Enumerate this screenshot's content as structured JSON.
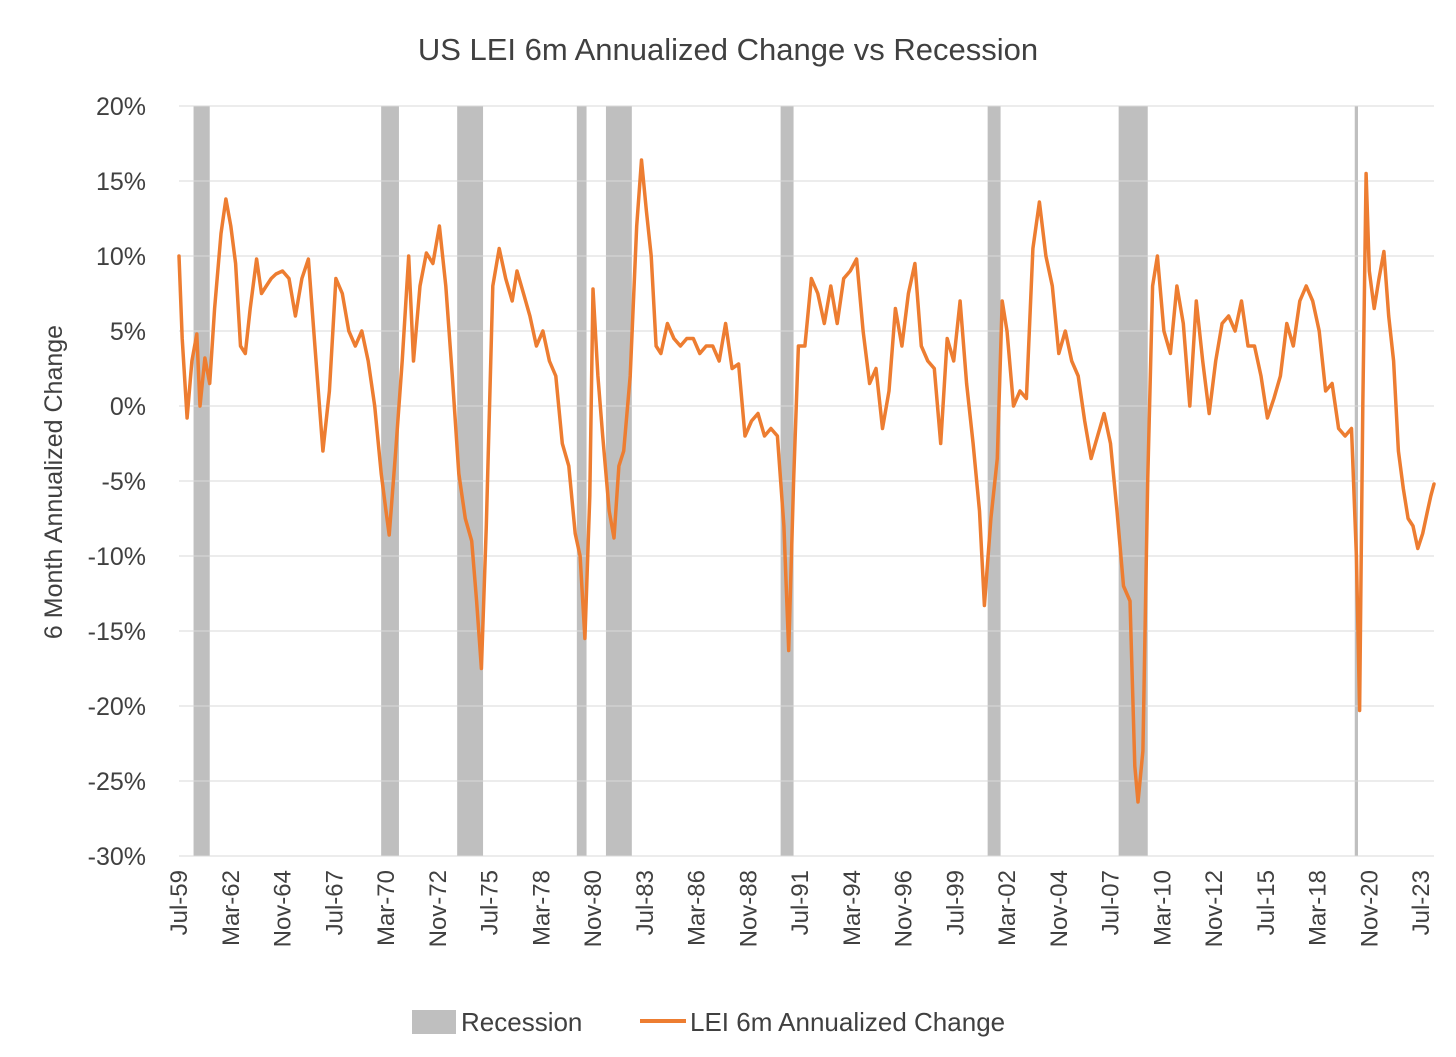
{
  "chart_data": {
    "type": "line",
    "title": "US LEI 6m Annualized Change vs Recession",
    "ylabel": "6 Month Annualized Change",
    "xlabel": "",
    "ylim": [
      -30,
      20
    ],
    "y_tick_labels": [
      "20%",
      "15%",
      "10%",
      "5%",
      "0%",
      "-5%",
      "-10%",
      "-15%",
      "-20%",
      "-25%",
      "-30%"
    ],
    "y_tick_values": [
      20,
      15,
      10,
      5,
      0,
      -5,
      -10,
      -15,
      -20,
      -25,
      -30
    ],
    "x_range": [
      "1959-07",
      "2024-03"
    ],
    "x_tick_labels": [
      "Jul-59",
      "Mar-62",
      "Nov-64",
      "Jul-67",
      "Mar-70",
      "Nov-72",
      "Jul-75",
      "Mar-78",
      "Nov-80",
      "Jul-83",
      "Mar-86",
      "Nov-88",
      "Jul-91",
      "Mar-94",
      "Nov-96",
      "Jul-99",
      "Mar-02",
      "Nov-04",
      "Jul-07",
      "Mar-10",
      "Nov-12",
      "Jul-15",
      "Mar-18",
      "Nov-20",
      "Jul-23"
    ],
    "x_tick_dates": [
      "1959-07",
      "1962-03",
      "1964-11",
      "1967-07",
      "1970-03",
      "1972-11",
      "1975-07",
      "1978-03",
      "1980-11",
      "1983-07",
      "1986-03",
      "1988-11",
      "1991-07",
      "1994-03",
      "1996-11",
      "1999-07",
      "2002-03",
      "2004-11",
      "2007-07",
      "2010-03",
      "2012-11",
      "2015-07",
      "2018-03",
      "2020-11",
      "2023-07"
    ],
    "grid": true,
    "legend_position": "bottom",
    "series": [
      {
        "name": "Recession",
        "type": "shaded-periods",
        "color": "#bfbfbf",
        "periods": [
          [
            "1960-04",
            "1961-02"
          ],
          [
            "1969-12",
            "1970-11"
          ],
          [
            "1973-11",
            "1975-03"
          ],
          [
            "1980-01",
            "1980-07"
          ],
          [
            "1981-07",
            "1982-11"
          ],
          [
            "1990-07",
            "1991-03"
          ],
          [
            "2001-03",
            "2001-11"
          ],
          [
            "2007-12",
            "2009-06"
          ],
          [
            "2020-02",
            "2020-04"
          ]
        ]
      },
      {
        "name": "LEI 6m Annualized Change",
        "type": "line",
        "color": "#ed7d31",
        "points": [
          [
            "1959-07",
            10.0
          ],
          [
            "1959-09",
            4.5
          ],
          [
            "1959-12",
            -0.8
          ],
          [
            "1960-03",
            3.0
          ],
          [
            "1960-06",
            4.8
          ],
          [
            "1960-08",
            0.0
          ],
          [
            "1960-11",
            3.2
          ],
          [
            "1961-02",
            1.5
          ],
          [
            "1961-05",
            6.5
          ],
          [
            "1961-09",
            11.5
          ],
          [
            "1961-12",
            13.8
          ],
          [
            "1962-03",
            12.0
          ],
          [
            "1962-06",
            9.5
          ],
          [
            "1962-09",
            4.0
          ],
          [
            "1962-12",
            3.5
          ],
          [
            "1963-03",
            6.5
          ],
          [
            "1963-07",
            9.8
          ],
          [
            "1963-10",
            7.5
          ],
          [
            "1964-01",
            8.0
          ],
          [
            "1964-04",
            8.5
          ],
          [
            "1964-07",
            8.8
          ],
          [
            "1964-11",
            9.0
          ],
          [
            "1965-03",
            8.5
          ],
          [
            "1965-07",
            6.0
          ],
          [
            "1965-11",
            8.5
          ],
          [
            "1966-03",
            9.8
          ],
          [
            "1966-07",
            4.0
          ],
          [
            "1966-12",
            -3.0
          ],
          [
            "1967-04",
            1.0
          ],
          [
            "1967-08",
            8.5
          ],
          [
            "1967-12",
            7.5
          ],
          [
            "1968-04",
            5.0
          ],
          [
            "1968-08",
            4.0
          ],
          [
            "1968-12",
            5.0
          ],
          [
            "1969-04",
            3.0
          ],
          [
            "1969-08",
            0.0
          ],
          [
            "1969-12",
            -4.5
          ],
          [
            "1970-03",
            -7.0
          ],
          [
            "1970-05",
            -8.6
          ],
          [
            "1970-09",
            -3.0
          ],
          [
            "1971-01",
            3.0
          ],
          [
            "1971-05",
            10.0
          ],
          [
            "1971-08",
            3.0
          ],
          [
            "1971-12",
            8.0
          ],
          [
            "1972-04",
            10.2
          ],
          [
            "1972-08",
            9.5
          ],
          [
            "1972-12",
            12.0
          ],
          [
            "1973-04",
            8.0
          ],
          [
            "1973-08",
            2.0
          ],
          [
            "1973-12",
            -4.5
          ],
          [
            "1974-04",
            -7.5
          ],
          [
            "1974-08",
            -9.0
          ],
          [
            "1974-11",
            -13.0
          ],
          [
            "1975-02",
            -17.5
          ],
          [
            "1975-05",
            -8.0
          ],
          [
            "1975-09",
            8.0
          ],
          [
            "1976-01",
            10.5
          ],
          [
            "1976-05",
            8.5
          ],
          [
            "1976-09",
            7.0
          ],
          [
            "1976-12",
            9.0
          ],
          [
            "1977-04",
            7.5
          ],
          [
            "1977-08",
            6.0
          ],
          [
            "1977-12",
            4.0
          ],
          [
            "1978-04",
            5.0
          ],
          [
            "1978-08",
            3.0
          ],
          [
            "1978-12",
            2.0
          ],
          [
            "1979-04",
            -2.5
          ],
          [
            "1979-08",
            -4.0
          ],
          [
            "1979-12",
            -8.5
          ],
          [
            "1980-03",
            -10.0
          ],
          [
            "1980-06",
            -15.5
          ],
          [
            "1980-09",
            -6.0
          ],
          [
            "1980-11",
            7.8
          ],
          [
            "1981-02",
            2.0
          ],
          [
            "1981-05",
            -2.0
          ],
          [
            "1981-09",
            -7.0
          ],
          [
            "1981-12",
            -8.8
          ],
          [
            "1982-03",
            -4.0
          ],
          [
            "1982-06",
            -3.0
          ],
          [
            "1982-10",
            2.0
          ],
          [
            "1983-02",
            12.0
          ],
          [
            "1983-05",
            16.4
          ],
          [
            "1983-08",
            13.0
          ],
          [
            "1983-11",
            10.0
          ],
          [
            "1984-02",
            4.0
          ],
          [
            "1984-05",
            3.5
          ],
          [
            "1984-09",
            5.5
          ],
          [
            "1985-01",
            4.5
          ],
          [
            "1985-05",
            4.0
          ],
          [
            "1985-09",
            4.5
          ],
          [
            "1986-01",
            4.5
          ],
          [
            "1986-05",
            3.5
          ],
          [
            "1986-09",
            4.0
          ],
          [
            "1987-01",
            4.0
          ],
          [
            "1987-05",
            3.0
          ],
          [
            "1987-09",
            5.5
          ],
          [
            "1988-01",
            2.5
          ],
          [
            "1988-05",
            2.8
          ],
          [
            "1988-09",
            -2.0
          ],
          [
            "1989-01",
            -1.0
          ],
          [
            "1989-05",
            -0.5
          ],
          [
            "1989-09",
            -2.0
          ],
          [
            "1990-01",
            -1.5
          ],
          [
            "1990-05",
            -2.0
          ],
          [
            "1990-09",
            -8.0
          ],
          [
            "1990-12",
            -16.3
          ],
          [
            "1991-03",
            -5.0
          ],
          [
            "1991-06",
            4.0
          ],
          [
            "1991-10",
            4.0
          ],
          [
            "1992-02",
            8.5
          ],
          [
            "1992-06",
            7.5
          ],
          [
            "1992-10",
            5.5
          ],
          [
            "1993-02",
            8.0
          ],
          [
            "1993-06",
            5.5
          ],
          [
            "1993-10",
            8.5
          ],
          [
            "1994-02",
            9.0
          ],
          [
            "1994-06",
            9.8
          ],
          [
            "1994-10",
            5.0
          ],
          [
            "1995-02",
            1.5
          ],
          [
            "1995-06",
            2.5
          ],
          [
            "1995-10",
            -1.5
          ],
          [
            "1996-02",
            1.0
          ],
          [
            "1996-06",
            6.5
          ],
          [
            "1996-10",
            4.0
          ],
          [
            "1997-02",
            7.5
          ],
          [
            "1997-06",
            9.5
          ],
          [
            "1997-10",
            4.0
          ],
          [
            "1998-02",
            3.0
          ],
          [
            "1998-06",
            2.5
          ],
          [
            "1998-10",
            -2.5
          ],
          [
            "1999-02",
            4.5
          ],
          [
            "1999-06",
            3.0
          ],
          [
            "1999-10",
            7.0
          ],
          [
            "2000-02",
            1.5
          ],
          [
            "2000-06",
            -2.5
          ],
          [
            "2000-10",
            -7.0
          ],
          [
            "2001-01",
            -13.3
          ],
          [
            "2001-05",
            -7.5
          ],
          [
            "2001-09",
            -3.5
          ],
          [
            "2001-12",
            7.0
          ],
          [
            "2002-03",
            5.0
          ],
          [
            "2002-07",
            0.0
          ],
          [
            "2002-11",
            1.0
          ],
          [
            "2003-03",
            0.5
          ],
          [
            "2003-07",
            10.5
          ],
          [
            "2003-11",
            13.6
          ],
          [
            "2004-03",
            10.0
          ],
          [
            "2004-07",
            8.0
          ],
          [
            "2004-11",
            3.5
          ],
          [
            "2005-03",
            5.0
          ],
          [
            "2005-07",
            3.0
          ],
          [
            "2005-11",
            2.0
          ],
          [
            "2006-03",
            -1.0
          ],
          [
            "2006-07",
            -3.5
          ],
          [
            "2006-11",
            -2.0
          ],
          [
            "2007-03",
            -0.5
          ],
          [
            "2007-07",
            -2.5
          ],
          [
            "2007-11",
            -7.0
          ],
          [
            "2008-03",
            -12.0
          ],
          [
            "2008-07",
            -13.0
          ],
          [
            "2008-10",
            -24.0
          ],
          [
            "2008-12",
            -26.4
          ],
          [
            "2009-03",
            -23.0
          ],
          [
            "2009-06",
            -5.0
          ],
          [
            "2009-09",
            8.0
          ],
          [
            "2009-12",
            10.0
          ],
          [
            "2010-04",
            5.0
          ],
          [
            "2010-08",
            3.5
          ],
          [
            "2010-12",
            8.0
          ],
          [
            "2011-04",
            5.5
          ],
          [
            "2011-08",
            0.0
          ],
          [
            "2011-12",
            7.0
          ],
          [
            "2012-04",
            3.0
          ],
          [
            "2012-08",
            -0.5
          ],
          [
            "2012-12",
            3.0
          ],
          [
            "2013-04",
            5.5
          ],
          [
            "2013-08",
            6.0
          ],
          [
            "2013-12",
            5.0
          ],
          [
            "2014-04",
            7.0
          ],
          [
            "2014-08",
            4.0
          ],
          [
            "2014-12",
            4.0
          ],
          [
            "2015-04",
            2.0
          ],
          [
            "2015-08",
            -0.8
          ],
          [
            "2015-12",
            0.5
          ],
          [
            "2016-04",
            2.0
          ],
          [
            "2016-08",
            5.5
          ],
          [
            "2016-12",
            4.0
          ],
          [
            "2017-04",
            7.0
          ],
          [
            "2017-08",
            8.0
          ],
          [
            "2017-12",
            7.0
          ],
          [
            "2018-04",
            5.0
          ],
          [
            "2018-08",
            1.0
          ],
          [
            "2018-12",
            1.5
          ],
          [
            "2019-04",
            -1.5
          ],
          [
            "2019-08",
            -2.0
          ],
          [
            "2019-12",
            -1.5
          ],
          [
            "2020-03",
            -10.0
          ],
          [
            "2020-05",
            -20.3
          ],
          [
            "2020-07",
            0.0
          ],
          [
            "2020-09",
            15.5
          ],
          [
            "2020-11",
            9.0
          ],
          [
            "2021-02",
            6.5
          ],
          [
            "2021-05",
            8.5
          ],
          [
            "2021-08",
            10.3
          ],
          [
            "2021-11",
            6.0
          ],
          [
            "2022-02",
            3.0
          ],
          [
            "2022-05",
            -3.0
          ],
          [
            "2022-08",
            -5.5
          ],
          [
            "2022-11",
            -7.5
          ],
          [
            "2023-02",
            -8.0
          ],
          [
            "2023-05",
            -9.5
          ],
          [
            "2023-08",
            -8.5
          ],
          [
            "2023-11",
            -7.0
          ],
          [
            "2024-01",
            -6.0
          ],
          [
            "2024-03",
            -5.2
          ]
        ]
      }
    ]
  }
}
